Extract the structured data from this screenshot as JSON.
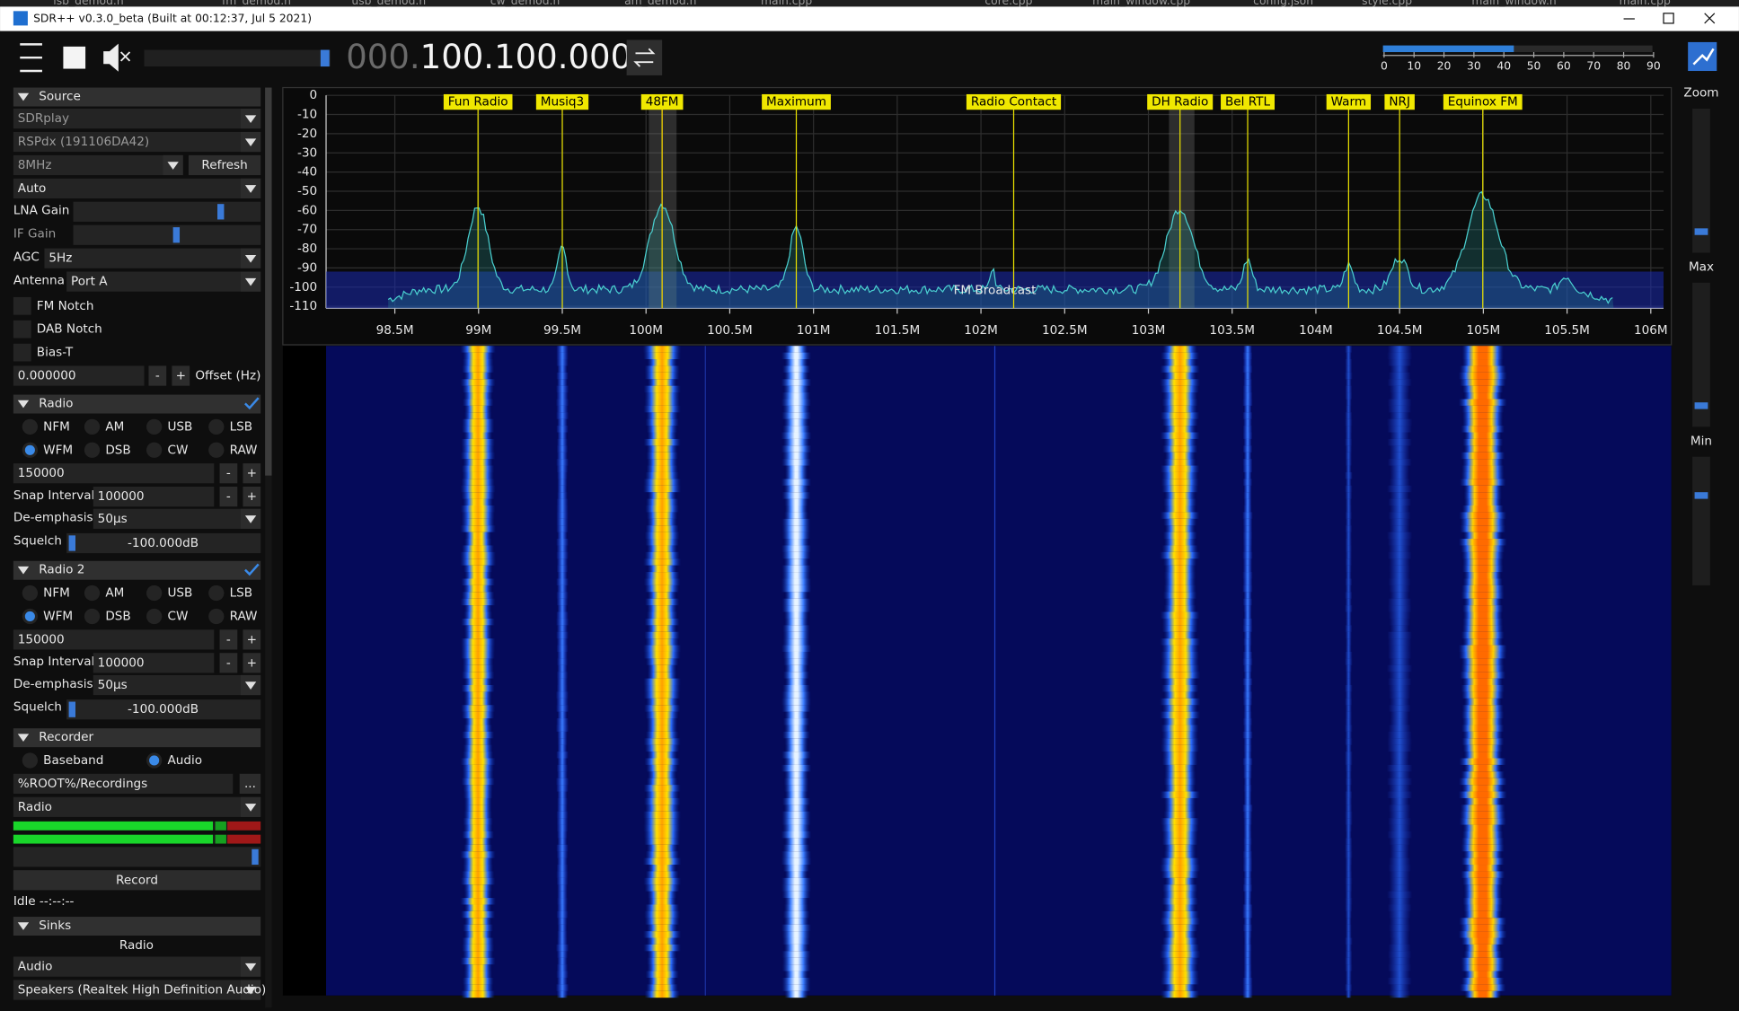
{
  "window": {
    "title": "SDR++ v0.3.0_beta (Built at 00:12:37, Jul  5 2021)"
  },
  "editor_tabs": [
    "lsb_demod.h",
    "fm_demod.h",
    "usb_demod.h",
    "cw_demod.h",
    "am_demod.h",
    "main.cpp",
    "core.cpp",
    "main_window.cpp",
    "config.json",
    "style.cpp",
    "main_window.h",
    "main.cpp"
  ],
  "toolbar": {
    "frequency_prefix": "000.",
    "frequency": "100.100.000",
    "snr_scale": [
      "0",
      "10",
      "20",
      "30",
      "40",
      "50",
      "60",
      "70",
      "80",
      "90"
    ]
  },
  "source": {
    "header": "Source",
    "device_type": "SDRplay",
    "device": "RSPdx (191106DA42)",
    "bandwidth": "8MHz",
    "refresh": "Refresh",
    "mode": "Auto",
    "lna_gain": "LNA Gain",
    "if_gain": "IF Gain",
    "agc": "AGC",
    "agc_value": "5Hz",
    "antenna": "Antenna",
    "antenna_value": "Port A",
    "fm_notch": "FM Notch",
    "dab_notch": "DAB Notch",
    "bias_t": "Bias-T",
    "offset": "0.000000",
    "minus": "-",
    "plus": "+",
    "offset_label": "Offset (Hz)"
  },
  "radios": [
    {
      "header": "Radio",
      "modes": [
        "NFM",
        "AM",
        "USB",
        "LSB",
        "WFM",
        "DSB",
        "CW",
        "RAW"
      ],
      "bandwidth": "150000",
      "snap_label": "Snap Interval",
      "snap": "100000",
      "deemph_label": "De-emphasis",
      "deemph": "50µs",
      "squelch_label": "Squelch",
      "squelch": "-100.000dB"
    },
    {
      "header": "Radio 2",
      "modes": [
        "NFM",
        "AM",
        "USB",
        "LSB",
        "WFM",
        "DSB",
        "CW",
        "RAW"
      ],
      "bandwidth": "150000",
      "snap_label": "Snap Interval",
      "snap": "100000",
      "deemph_label": "De-emphasis",
      "deemph": "50µs",
      "squelch_label": "Squelch",
      "squelch": "-100.000dB"
    }
  ],
  "recorder": {
    "header": "Recorder",
    "baseband": "Baseband",
    "audio": "Audio",
    "path": "%ROOT%/Recordings",
    "browse": "...",
    "stream": "Radio",
    "record": "Record",
    "status": "Idle --:--:--"
  },
  "sinks": {
    "header": "Sinks",
    "stream": "Radio",
    "type": "Audio",
    "device": "Speakers (Realtek High Definition Audio)"
  },
  "fft": {
    "yticks": [
      "0",
      "-10",
      "-20",
      "-30",
      "-40",
      "-50",
      "-60",
      "-70",
      "-80",
      "-90",
      "-100",
      "-110"
    ],
    "xticks": [
      "98.5M",
      "99M",
      "99.5M",
      "100M",
      "100.5M",
      "101M",
      "101.5M",
      "102M",
      "102.5M",
      "103M",
      "103.5M",
      "104M",
      "104.5M",
      "105M",
      "105.5M",
      "106M"
    ],
    "bookmarks": [
      "Fun Radio",
      "Musiq3",
      "48FM",
      "Maximum",
      "Radio Contact",
      "DH Radio",
      "Bel RTL",
      "Warm",
      "NRJ",
      "Equinox FM"
    ],
    "band": "FM Broadcast"
  },
  "sliders": {
    "zoom": "Zoom",
    "max": "Max",
    "min": "Min"
  }
}
